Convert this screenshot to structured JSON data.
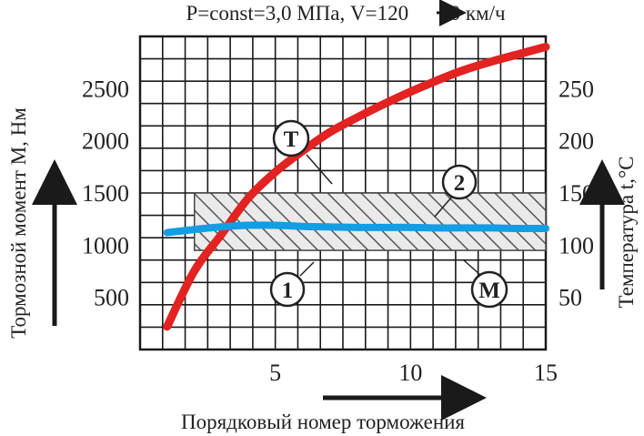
{
  "chart_data": {
    "type": "line",
    "title": "P=const=3,0 МПа, V=120→60 км/ч",
    "title_parts": {
      "before_arrow": "P=const=3,0 МПа, V=120",
      "after_arrow": "60 км/ч"
    },
    "xlabel": "Порядковый номер торможения",
    "ylabel": "Тормозной момент М, Нм",
    "ylabel_right": "Температура t,°С",
    "xlim": [
      0,
      15
    ],
    "ylim": [
      0,
      3000
    ],
    "ylim_right": [
      0,
      300
    ],
    "x_ticks": [
      "5",
      "10",
      "15"
    ],
    "y_ticks": [
      "500",
      "1000",
      "1500",
      "2000",
      "2500"
    ],
    "y_ticks_right": [
      "50",
      "100",
      "150",
      "200",
      "250"
    ],
    "grid": true,
    "band": {
      "label": "M",
      "range": [
        950,
        1500
      ],
      "pattern": "diagonal-hatch",
      "bounds_labels": [
        "1",
        "2"
      ]
    },
    "series": [
      {
        "name": "T",
        "axis": "right",
        "color": "#e32222",
        "x": [
          1,
          2,
          3,
          4,
          5,
          6,
          7,
          8,
          9,
          10,
          11,
          12,
          13,
          14,
          15
        ],
        "y": [
          22,
          75,
          110,
          145,
          170,
          190,
          208,
          222,
          235,
          247,
          258,
          268,
          276,
          283,
          290
        ]
      },
      {
        "name": "",
        "axis": "left",
        "color": "#139de3",
        "x": [
          1,
          2,
          3,
          4,
          5,
          6,
          7,
          8,
          9,
          10,
          11,
          12,
          13,
          14,
          15
        ],
        "y": [
          1120,
          1150,
          1175,
          1190,
          1190,
          1180,
          1175,
          1170,
          1170,
          1170,
          1165,
          1165,
          1165,
          1160,
          1160
        ]
      }
    ],
    "callouts": [
      {
        "label": "T",
        "target": "T"
      },
      {
        "label": "2",
        "target": "band-upper"
      },
      {
        "label": "1",
        "target": "band-lower"
      },
      {
        "label": "M",
        "target": "band"
      }
    ]
  }
}
